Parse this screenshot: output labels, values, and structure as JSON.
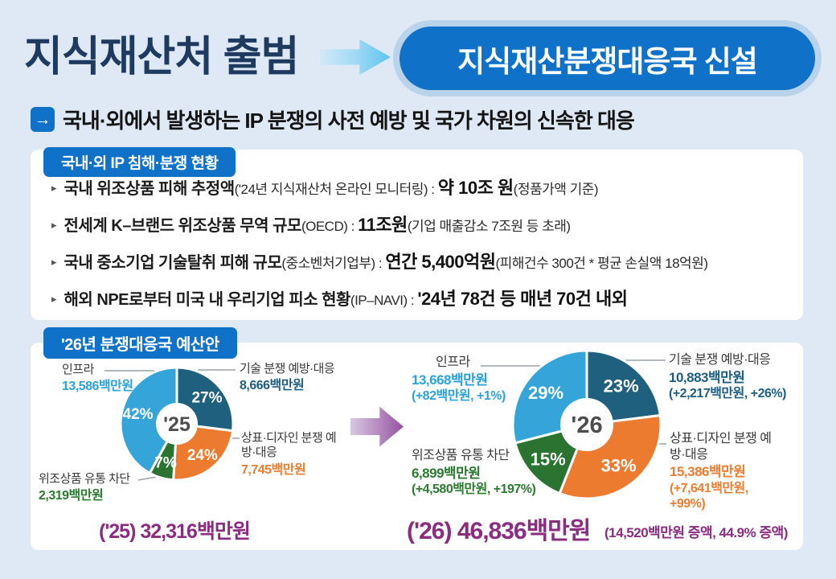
{
  "header": {
    "title": "지식재산처 출범",
    "badge": "지식재산분쟁대응국 신설",
    "arrow_icon": "→",
    "subtitle": "국내·외에서 발생하는 IP 분쟁의 사전 예방 및 국가 차원의 신속한 대응"
  },
  "status_box": {
    "header": "국내·외 IP 침해·분쟁 현황",
    "marker": "▸",
    "bullets": [
      {
        "segments": [
          {
            "t": "국내 위조상품 피해 추정액",
            "s": "b"
          },
          {
            "t": "('24년 지식재산처 온라인 모니터링)",
            "s": "n"
          },
          {
            "t": " : ",
            "s": "n"
          },
          {
            "t": "약 10조 원",
            "s": "e"
          },
          {
            "t": "(정품가액 기준)",
            "s": "n"
          }
        ]
      },
      {
        "segments": [
          {
            "t": "전세계 K–브랜드 위조상품 무역 규모",
            "s": "b"
          },
          {
            "t": "(OECD)",
            "s": "n"
          },
          {
            "t": " : ",
            "s": "n"
          },
          {
            "t": "11조원",
            "s": "e"
          },
          {
            "t": "(기업 매출감소 7조원 등 초래)",
            "s": "n"
          }
        ]
      },
      {
        "segments": [
          {
            "t": "국내 중소기업 기술탈취 피해 규모",
            "s": "b"
          },
          {
            "t": "(중소벤처기업부)",
            "s": "n"
          },
          {
            "t": " : ",
            "s": "n"
          },
          {
            "t": "연간 5,400억원",
            "s": "e"
          },
          {
            "t": "(피해건수 300건 * 평균 손실액 18억원)",
            "s": "n"
          }
        ]
      },
      {
        "segments": [
          {
            "t": "해외 NPE로부터 미국 내 우리기업 피소 현황",
            "s": "b"
          },
          {
            "t": "(IP–NAVI)",
            "s": "n"
          },
          {
            "t": " : ",
            "s": "n"
          },
          {
            "t": "'24년 78건 등 매년 70건 내외",
            "s": "e"
          }
        ]
      }
    ]
  },
  "budget_box": {
    "header": "'26년 분쟁대응국 예산안"
  },
  "chart_data": [
    {
      "type": "pie",
      "title": "'25",
      "unit": "백만원",
      "total": 32316,
      "total_label": "('25) 32,316백만원",
      "slices": [
        {
          "key": "tech",
          "label": "기술 분쟁 예방·대응",
          "pct": 27,
          "value": 8666,
          "value_label": "8,666백만원",
          "color": "#20607f"
        },
        {
          "key": "brand",
          "label": "상표·디자인 분쟁 예방·대응",
          "pct": 24,
          "value": 7745,
          "value_label": "7,745백만원",
          "color": "#ec7a2f"
        },
        {
          "key": "fake",
          "label": "위조상품 유통 차단",
          "pct": 7,
          "value": 2319,
          "value_label": "2,319백만원",
          "color": "#2b7330"
        },
        {
          "key": "infra",
          "label": "인프라",
          "pct": 42,
          "value": 13586,
          "value_label": "13,586백만원",
          "color": "#35a5d9"
        }
      ]
    },
    {
      "type": "pie",
      "title": "'26",
      "unit": "백만원",
      "total": 46836,
      "total_label": "('26) 46,836백만원",
      "total_note": "(14,520백만원 증액, 44.9% 증액)",
      "slices": [
        {
          "key": "tech",
          "label": "기술 분쟁 예방·대응",
          "pct": 23,
          "value": 10883,
          "value_label": "10,883백만원",
          "delta_label": "(+2,217백만원, +26%)",
          "color": "#20607f"
        },
        {
          "key": "brand",
          "label": "상표·디자인 분쟁 예방·대응",
          "pct": 33,
          "value": 15386,
          "value_label": "15,386백만원",
          "delta_label": "(+7,641백만원, +99%)",
          "color": "#ec7a2f"
        },
        {
          "key": "fake",
          "label": "위조상품 유통 차단",
          "pct": 15,
          "value": 6899,
          "value_label": "6,899백만원",
          "delta_label": "(+4,580백만원, +197%)",
          "color": "#2b7330"
        },
        {
          "key": "infra",
          "label": "인프라",
          "pct": 29,
          "value": 13668,
          "value_label": "13,668백만원",
          "delta_label": "(+82백만원, +1%)",
          "color": "#35a5d9"
        }
      ]
    }
  ],
  "colors": {
    "background": "#dee9f5",
    "title_navy": "#1f3a5f",
    "primary_blue": "#0f72c8",
    "badge_ring": "#b8d3ea",
    "purple_total": "#8a2d80",
    "slice_tech": "#20607f",
    "slice_brand": "#ec7a2f",
    "slice_fake": "#2b7330",
    "slice_infra": "#35a5d9"
  }
}
